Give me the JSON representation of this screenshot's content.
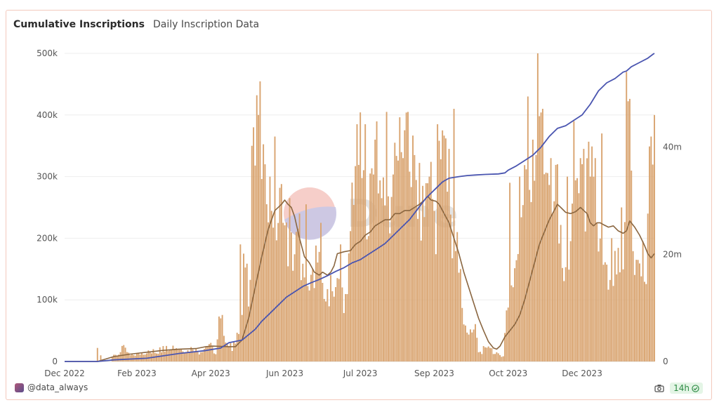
{
  "header": {
    "title": "Cumulative Inscriptions",
    "subtitle": "Daily Inscription Data"
  },
  "footer": {
    "author": "@data_always",
    "freshness": "14h"
  },
  "watermark": "Dune",
  "colors": {
    "bars": "#d9a470",
    "cumulative_line": "#4a55b0",
    "moving_average_line": "#8a6640",
    "grid": "#eeeeee"
  },
  "icons": {
    "avatar": "avatar-icon",
    "camera": "camera-icon",
    "status": "check-circle-icon"
  },
  "chart_data": {
    "type": "bar",
    "x_tick_labels": [
      "Dec 2022",
      "Feb 2023",
      "Apr 2023",
      "Jun 2023",
      "Jul 2023",
      "Sep 2023",
      "Oct 2023",
      "Dec 2023"
    ],
    "y_left": {
      "ticks": [
        0,
        100000,
        200000,
        300000,
        400000,
        500000
      ],
      "tick_labels": [
        "0",
        "100k",
        "200k",
        "300k",
        "400k",
        "500k"
      ],
      "range": [
        0,
        500000
      ]
    },
    "y_right": {
      "ticks": [
        0,
        20000000,
        40000000
      ],
      "tick_labels": [
        "0",
        "20m",
        "40m"
      ],
      "range": [
        0,
        57500000
      ]
    },
    "grid": true,
    "bar_anchors": [
      [
        0,
        0
      ],
      [
        28,
        0
      ],
      [
        29,
        8000
      ],
      [
        33,
        12000
      ],
      [
        35,
        25000
      ],
      [
        40,
        10000
      ],
      [
        50,
        15000
      ],
      [
        55,
        12000
      ],
      [
        60,
        20000
      ],
      [
        65,
        26000
      ],
      [
        70,
        22000
      ],
      [
        75,
        18000
      ],
      [
        78,
        24000
      ],
      [
        82,
        15000
      ],
      [
        88,
        30000
      ],
      [
        92,
        12000
      ],
      [
        95,
        75000
      ],
      [
        99,
        30000
      ],
      [
        103,
        20000
      ],
      [
        108,
        70000
      ],
      [
        110,
        185000
      ],
      [
        112,
        120000
      ],
      [
        115,
        300000
      ],
      [
        118,
        400000
      ],
      [
        121,
        320000
      ],
      [
        123,
        330000
      ],
      [
        126,
        280000
      ],
      [
        129,
        230000
      ],
      [
        132,
        260000
      ],
      [
        135,
        200000
      ],
      [
        139,
        180000
      ],
      [
        143,
        200000
      ],
      [
        146,
        120000
      ],
      [
        150,
        120000
      ],
      [
        153,
        175000
      ],
      [
        157,
        130000
      ],
      [
        161,
        90000
      ],
      [
        164,
        130000
      ],
      [
        168,
        120000
      ],
      [
        172,
        95000
      ],
      [
        175,
        280000
      ],
      [
        178,
        380000
      ],
      [
        182,
        290000
      ],
      [
        186,
        260000
      ],
      [
        190,
        380000
      ],
      [
        193,
        250000
      ],
      [
        197,
        240000
      ],
      [
        200,
        300000
      ],
      [
        203,
        360000
      ],
      [
        206,
        310000
      ],
      [
        210,
        360000
      ],
      [
        214,
        290000
      ],
      [
        218,
        240000
      ],
      [
        222,
        320000
      ],
      [
        226,
        230000
      ],
      [
        230,
        400000
      ],
      [
        233,
        300000
      ],
      [
        236,
        200000
      ],
      [
        239,
        160000
      ],
      [
        242,
        90000
      ],
      [
        246,
        40000
      ],
      [
        250,
        55000
      ],
      [
        254,
        10000
      ],
      [
        258,
        30000
      ],
      [
        262,
        12000
      ],
      [
        267,
        10000
      ],
      [
        269,
        80000
      ],
      [
        273,
        140000
      ],
      [
        277,
        200000
      ],
      [
        281,
        400000
      ],
      [
        285,
        250000
      ],
      [
        289,
        440000
      ],
      [
        292,
        260000
      ],
      [
        296,
        350000
      ],
      [
        300,
        250000
      ],
      [
        304,
        130000
      ],
      [
        308,
        180000
      ],
      [
        312,
        320000
      ],
      [
        316,
        250000
      ],
      [
        320,
        320000
      ],
      [
        324,
        220000
      ],
      [
        328,
        150000
      ],
      [
        332,
        120000
      ],
      [
        336,
        160000
      ],
      [
        340,
        130000
      ],
      [
        344,
        450000
      ],
      [
        346,
        180000
      ],
      [
        350,
        150000
      ],
      [
        354,
        140000
      ],
      [
        357,
        380000
      ],
      [
        359,
        400000
      ]
    ],
    "bar_peaks": [
      [
        20,
        22000
      ],
      [
        22,
        10000
      ],
      [
        51,
        18000
      ],
      [
        54,
        20000
      ],
      [
        58,
        23000
      ],
      [
        60,
        25000
      ],
      [
        94,
        73000
      ],
      [
        95,
        70000
      ],
      [
        103,
        32000
      ],
      [
        107,
        190000
      ],
      [
        109,
        175000
      ],
      [
        114,
        350000
      ],
      [
        115,
        380000
      ],
      [
        118,
        400000
      ],
      [
        122,
        320000
      ],
      [
        125,
        300000
      ],
      [
        128,
        365000
      ],
      [
        133,
        225000
      ],
      [
        137,
        265000
      ],
      [
        143,
        240000
      ],
      [
        147,
        255000
      ],
      [
        151,
        150000
      ],
      [
        156,
        225000
      ],
      [
        162,
        140000
      ],
      [
        168,
        190000
      ],
      [
        178,
        385000
      ],
      [
        183,
        385000
      ],
      [
        189,
        360000
      ],
      [
        193,
        265000
      ],
      [
        196,
        405000
      ],
      [
        201,
        355000
      ],
      [
        206,
        330000
      ],
      [
        209,
        405000
      ],
      [
        213,
        335000
      ],
      [
        218,
        285000
      ],
      [
        222,
        300000
      ],
      [
        227,
        385000
      ],
      [
        230,
        375000
      ],
      [
        234,
        345000
      ],
      [
        237,
        410000
      ],
      [
        239,
        210000
      ],
      [
        241,
        150000
      ],
      [
        252,
        15000
      ],
      [
        255,
        25000
      ],
      [
        259,
        22000
      ],
      [
        263,
        15000
      ],
      [
        271,
        290000
      ],
      [
        277,
        300000
      ],
      [
        282,
        430000
      ],
      [
        285,
        360000
      ],
      [
        287,
        335000
      ],
      [
        288,
        500000
      ],
      [
        291,
        410000
      ],
      [
        296,
        330000
      ],
      [
        300,
        320000
      ],
      [
        306,
        300000
      ],
      [
        310,
        390000
      ],
      [
        314,
        330000
      ],
      [
        316,
        345000
      ],
      [
        320,
        300000
      ],
      [
        323,
        330000
      ],
      [
        327,
        370000
      ],
      [
        333,
        200000
      ],
      [
        339,
        250000
      ],
      [
        342,
        470000
      ],
      [
        348,
        165000
      ],
      [
        352,
        195000
      ],
      [
        355,
        240000
      ],
      [
        357,
        365000
      ],
      [
        359,
        400000
      ]
    ],
    "moving_average": [
      [
        0,
        0
      ],
      [
        20,
        0
      ],
      [
        25,
        4000
      ],
      [
        30,
        8000
      ],
      [
        40,
        12000
      ],
      [
        50,
        15000
      ],
      [
        60,
        18000
      ],
      [
        70,
        20000
      ],
      [
        80,
        21000
      ],
      [
        86,
        24000
      ],
      [
        90,
        25000
      ],
      [
        100,
        24000
      ],
      [
        104,
        24000
      ],
      [
        108,
        35000
      ],
      [
        112,
        70000
      ],
      [
        116,
        120000
      ],
      [
        120,
        170000
      ],
      [
        124,
        215000
      ],
      [
        128,
        245000
      ],
      [
        132,
        255000
      ],
      [
        134,
        262000
      ],
      [
        136,
        255000
      ],
      [
        138,
        250000
      ],
      [
        140,
        235000
      ],
      [
        143,
        200000
      ],
      [
        146,
        170000
      ],
      [
        149,
        160000
      ],
      [
        152,
        145000
      ],
      [
        155,
        140000
      ],
      [
        157,
        145000
      ],
      [
        160,
        140000
      ],
      [
        162,
        145000
      ],
      [
        164,
        155000
      ],
      [
        166,
        175000
      ],
      [
        170,
        178000
      ],
      [
        174,
        180000
      ],
      [
        177,
        190000
      ],
      [
        180,
        195000
      ],
      [
        183,
        205000
      ],
      [
        186,
        210000
      ],
      [
        189,
        220000
      ],
      [
        192,
        225000
      ],
      [
        195,
        230000
      ],
      [
        198,
        230000
      ],
      [
        201,
        240000
      ],
      [
        204,
        240000
      ],
      [
        207,
        245000
      ],
      [
        210,
        245000
      ],
      [
        213,
        250000
      ],
      [
        216,
        255000
      ],
      [
        219,
        262000
      ],
      [
        221,
        268000
      ],
      [
        223,
        262000
      ],
      [
        226,
        260000
      ],
      [
        228,
        255000
      ],
      [
        231,
        240000
      ],
      [
        234,
        225000
      ],
      [
        237,
        200000
      ],
      [
        240,
        175000
      ],
      [
        243,
        145000
      ],
      [
        246,
        120000
      ],
      [
        249,
        95000
      ],
      [
        252,
        70000
      ],
      [
        255,
        50000
      ],
      [
        258,
        32000
      ],
      [
        261,
        22000
      ],
      [
        263,
        20000
      ],
      [
        265,
        25000
      ],
      [
        268,
        40000
      ],
      [
        271,
        50000
      ],
      [
        274,
        60000
      ],
      [
        277,
        75000
      ],
      [
        280,
        100000
      ],
      [
        283,
        130000
      ],
      [
        286,
        160000
      ],
      [
        289,
        190000
      ],
      [
        292,
        210000
      ],
      [
        295,
        230000
      ],
      [
        298,
        245000
      ],
      [
        300,
        255000
      ],
      [
        302,
        250000
      ],
      [
        305,
        242000
      ],
      [
        308,
        240000
      ],
      [
        311,
        243000
      ],
      [
        314,
        250000
      ],
      [
        316,
        245000
      ],
      [
        318,
        240000
      ],
      [
        320,
        225000
      ],
      [
        322,
        220000
      ],
      [
        324,
        225000
      ],
      [
        326,
        225000
      ],
      [
        328,
        222000
      ],
      [
        331,
        218000
      ],
      [
        334,
        220000
      ],
      [
        337,
        212000
      ],
      [
        340,
        208000
      ],
      [
        342,
        212000
      ],
      [
        344,
        228000
      ],
      [
        347,
        218000
      ],
      [
        350,
        205000
      ],
      [
        353,
        188000
      ],
      [
        355,
        175000
      ],
      [
        357,
        168000
      ],
      [
        359,
        175000
      ]
    ],
    "cumulative": [
      [
        0,
        0
      ],
      [
        20,
        0
      ],
      [
        30,
        300000
      ],
      [
        50,
        600000
      ],
      [
        70,
        1500000
      ],
      [
        85,
        2000000
      ],
      [
        95,
        2500000
      ],
      [
        100,
        3500000
      ],
      [
        108,
        4000000
      ],
      [
        112,
        5000000
      ],
      [
        116,
        6000000
      ],
      [
        120,
        7500000
      ],
      [
        125,
        9000000
      ],
      [
        130,
        10500000
      ],
      [
        135,
        12000000
      ],
      [
        140,
        13000000
      ],
      [
        145,
        14000000
      ],
      [
        150,
        14700000
      ],
      [
        155,
        15300000
      ],
      [
        160,
        16000000
      ],
      [
        165,
        16800000
      ],
      [
        170,
        17500000
      ],
      [
        175,
        18400000
      ],
      [
        180,
        19000000
      ],
      [
        185,
        20000000
      ],
      [
        190,
        21000000
      ],
      [
        195,
        22000000
      ],
      [
        200,
        23500000
      ],
      [
        205,
        25000000
      ],
      [
        210,
        26500000
      ],
      [
        215,
        28500000
      ],
      [
        220,
        30500000
      ],
      [
        225,
        32000000
      ],
      [
        230,
        33500000
      ],
      [
        234,
        34200000
      ],
      [
        240,
        34500000
      ],
      [
        245,
        34700000
      ],
      [
        250,
        34800000
      ],
      [
        256,
        34900000
      ],
      [
        264,
        35000000
      ],
      [
        268,
        35200000
      ],
      [
        270,
        35700000
      ],
      [
        275,
        36500000
      ],
      [
        280,
        37500000
      ],
      [
        285,
        38500000
      ],
      [
        290,
        40000000
      ],
      [
        295,
        42000000
      ],
      [
        300,
        43500000
      ],
      [
        305,
        44000000
      ],
      [
        310,
        45000000
      ],
      [
        315,
        46000000
      ],
      [
        320,
        48000000
      ],
      [
        325,
        50500000
      ],
      [
        330,
        52000000
      ],
      [
        335,
        52800000
      ],
      [
        340,
        54000000
      ],
      [
        342,
        54200000
      ],
      [
        345,
        55000000
      ],
      [
        350,
        55800000
      ],
      [
        355,
        56600000
      ],
      [
        358,
        57300000
      ],
      [
        359,
        57500000
      ]
    ],
    "x_tick_day_positions": [
      0,
      44,
      89,
      134,
      180,
      225,
      270,
      315
    ],
    "total_days": 360
  }
}
